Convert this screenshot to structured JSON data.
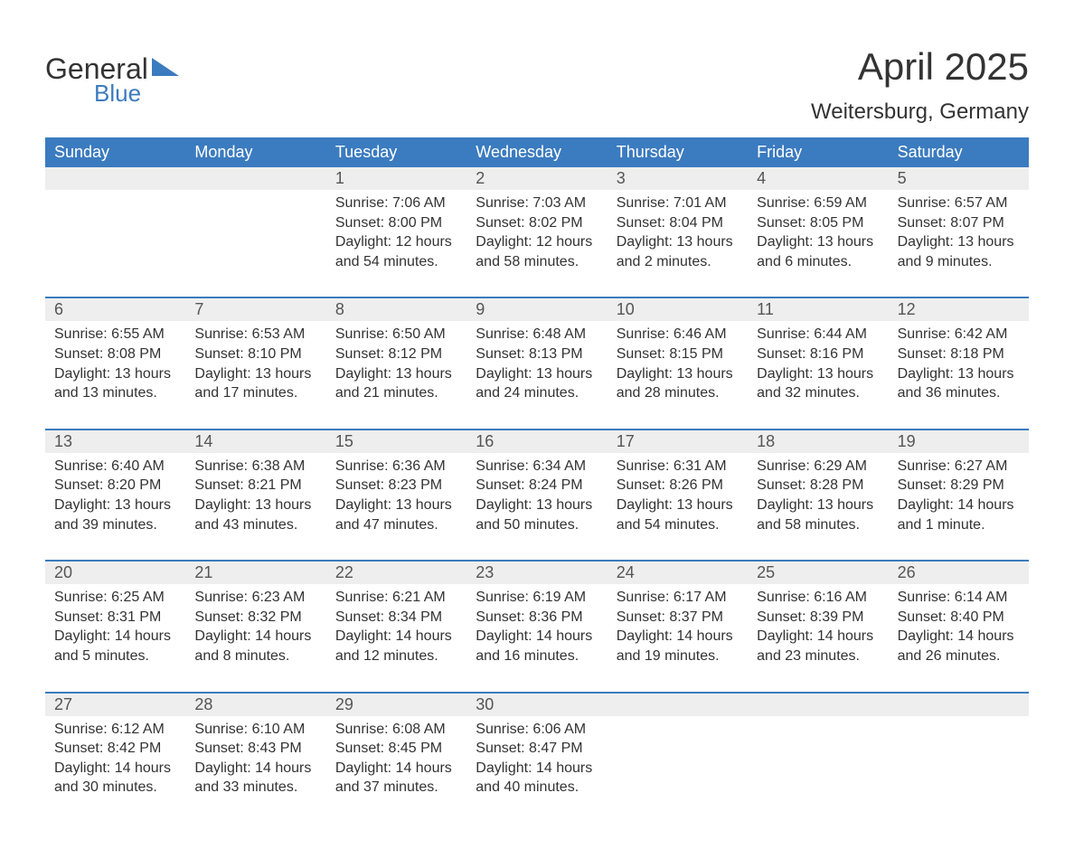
{
  "logo": {
    "word1": "General",
    "word2": "Blue",
    "accent_color": "#3b7bbf"
  },
  "title": "April 2025",
  "location": "Weitersburg, Germany",
  "colors": {
    "header_bg": "#3b7bbf",
    "header_text": "#ffffff",
    "num_row_bg": "#eeeeee",
    "week_border": "#3b7bbf",
    "body_text": "#333333",
    "page_bg": "#ffffff"
  },
  "typography": {
    "title_fontsize": 42,
    "subtitle_fontsize": 24,
    "daylabel_fontsize": 18,
    "daynum_fontsize": 18,
    "cell_fontsize": 16
  },
  "day_labels": [
    "Sunday",
    "Monday",
    "Tuesday",
    "Wednesday",
    "Thursday",
    "Friday",
    "Saturday"
  ],
  "weeks": [
    [
      {
        "num": "",
        "sunrise": "",
        "sunset": "",
        "daylight": ""
      },
      {
        "num": "",
        "sunrise": "",
        "sunset": "",
        "daylight": ""
      },
      {
        "num": "1",
        "sunrise": "Sunrise: 7:06 AM",
        "sunset": "Sunset: 8:00 PM",
        "daylight": "Daylight: 12 hours and 54 minutes."
      },
      {
        "num": "2",
        "sunrise": "Sunrise: 7:03 AM",
        "sunset": "Sunset: 8:02 PM",
        "daylight": "Daylight: 12 hours and 58 minutes."
      },
      {
        "num": "3",
        "sunrise": "Sunrise: 7:01 AM",
        "sunset": "Sunset: 8:04 PM",
        "daylight": "Daylight: 13 hours and 2 minutes."
      },
      {
        "num": "4",
        "sunrise": "Sunrise: 6:59 AM",
        "sunset": "Sunset: 8:05 PM",
        "daylight": "Daylight: 13 hours and 6 minutes."
      },
      {
        "num": "5",
        "sunrise": "Sunrise: 6:57 AM",
        "sunset": "Sunset: 8:07 PM",
        "daylight": "Daylight: 13 hours and 9 minutes."
      }
    ],
    [
      {
        "num": "6",
        "sunrise": "Sunrise: 6:55 AM",
        "sunset": "Sunset: 8:08 PM",
        "daylight": "Daylight: 13 hours and 13 minutes."
      },
      {
        "num": "7",
        "sunrise": "Sunrise: 6:53 AM",
        "sunset": "Sunset: 8:10 PM",
        "daylight": "Daylight: 13 hours and 17 minutes."
      },
      {
        "num": "8",
        "sunrise": "Sunrise: 6:50 AM",
        "sunset": "Sunset: 8:12 PM",
        "daylight": "Daylight: 13 hours and 21 minutes."
      },
      {
        "num": "9",
        "sunrise": "Sunrise: 6:48 AM",
        "sunset": "Sunset: 8:13 PM",
        "daylight": "Daylight: 13 hours and 24 minutes."
      },
      {
        "num": "10",
        "sunrise": "Sunrise: 6:46 AM",
        "sunset": "Sunset: 8:15 PM",
        "daylight": "Daylight: 13 hours and 28 minutes."
      },
      {
        "num": "11",
        "sunrise": "Sunrise: 6:44 AM",
        "sunset": "Sunset: 8:16 PM",
        "daylight": "Daylight: 13 hours and 32 minutes."
      },
      {
        "num": "12",
        "sunrise": "Sunrise: 6:42 AM",
        "sunset": "Sunset: 8:18 PM",
        "daylight": "Daylight: 13 hours and 36 minutes."
      }
    ],
    [
      {
        "num": "13",
        "sunrise": "Sunrise: 6:40 AM",
        "sunset": "Sunset: 8:20 PM",
        "daylight": "Daylight: 13 hours and 39 minutes."
      },
      {
        "num": "14",
        "sunrise": "Sunrise: 6:38 AM",
        "sunset": "Sunset: 8:21 PM",
        "daylight": "Daylight: 13 hours and 43 minutes."
      },
      {
        "num": "15",
        "sunrise": "Sunrise: 6:36 AM",
        "sunset": "Sunset: 8:23 PM",
        "daylight": "Daylight: 13 hours and 47 minutes."
      },
      {
        "num": "16",
        "sunrise": "Sunrise: 6:34 AM",
        "sunset": "Sunset: 8:24 PM",
        "daylight": "Daylight: 13 hours and 50 minutes."
      },
      {
        "num": "17",
        "sunrise": "Sunrise: 6:31 AM",
        "sunset": "Sunset: 8:26 PM",
        "daylight": "Daylight: 13 hours and 54 minutes."
      },
      {
        "num": "18",
        "sunrise": "Sunrise: 6:29 AM",
        "sunset": "Sunset: 8:28 PM",
        "daylight": "Daylight: 13 hours and 58 minutes."
      },
      {
        "num": "19",
        "sunrise": "Sunrise: 6:27 AM",
        "sunset": "Sunset: 8:29 PM",
        "daylight": "Daylight: 14 hours and 1 minute."
      }
    ],
    [
      {
        "num": "20",
        "sunrise": "Sunrise: 6:25 AM",
        "sunset": "Sunset: 8:31 PM",
        "daylight": "Daylight: 14 hours and 5 minutes."
      },
      {
        "num": "21",
        "sunrise": "Sunrise: 6:23 AM",
        "sunset": "Sunset: 8:32 PM",
        "daylight": "Daylight: 14 hours and 8 minutes."
      },
      {
        "num": "22",
        "sunrise": "Sunrise: 6:21 AM",
        "sunset": "Sunset: 8:34 PM",
        "daylight": "Daylight: 14 hours and 12 minutes."
      },
      {
        "num": "23",
        "sunrise": "Sunrise: 6:19 AM",
        "sunset": "Sunset: 8:36 PM",
        "daylight": "Daylight: 14 hours and 16 minutes."
      },
      {
        "num": "24",
        "sunrise": "Sunrise: 6:17 AM",
        "sunset": "Sunset: 8:37 PM",
        "daylight": "Daylight: 14 hours and 19 minutes."
      },
      {
        "num": "25",
        "sunrise": "Sunrise: 6:16 AM",
        "sunset": "Sunset: 8:39 PM",
        "daylight": "Daylight: 14 hours and 23 minutes."
      },
      {
        "num": "26",
        "sunrise": "Sunrise: 6:14 AM",
        "sunset": "Sunset: 8:40 PM",
        "daylight": "Daylight: 14 hours and 26 minutes."
      }
    ],
    [
      {
        "num": "27",
        "sunrise": "Sunrise: 6:12 AM",
        "sunset": "Sunset: 8:42 PM",
        "daylight": "Daylight: 14 hours and 30 minutes."
      },
      {
        "num": "28",
        "sunrise": "Sunrise: 6:10 AM",
        "sunset": "Sunset: 8:43 PM",
        "daylight": "Daylight: 14 hours and 33 minutes."
      },
      {
        "num": "29",
        "sunrise": "Sunrise: 6:08 AM",
        "sunset": "Sunset: 8:45 PM",
        "daylight": "Daylight: 14 hours and 37 minutes."
      },
      {
        "num": "30",
        "sunrise": "Sunrise: 6:06 AM",
        "sunset": "Sunset: 8:47 PM",
        "daylight": "Daylight: 14 hours and 40 minutes."
      },
      {
        "num": "",
        "sunrise": "",
        "sunset": "",
        "daylight": ""
      },
      {
        "num": "",
        "sunrise": "",
        "sunset": "",
        "daylight": ""
      },
      {
        "num": "",
        "sunrise": "",
        "sunset": "",
        "daylight": ""
      }
    ]
  ]
}
